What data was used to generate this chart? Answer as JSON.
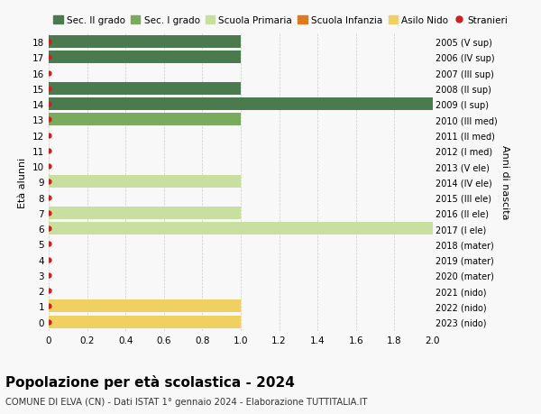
{
  "ages": [
    18,
    17,
    16,
    15,
    14,
    13,
    12,
    11,
    10,
    9,
    8,
    7,
    6,
    5,
    4,
    3,
    2,
    1,
    0
  ],
  "years": [
    "2005 (V sup)",
    "2006 (IV sup)",
    "2007 (III sup)",
    "2008 (II sup)",
    "2009 (I sup)",
    "2010 (III med)",
    "2011 (II med)",
    "2012 (I med)",
    "2013 (V ele)",
    "2014 (IV ele)",
    "2015 (III ele)",
    "2016 (II ele)",
    "2017 (I ele)",
    "2018 (mater)",
    "2019 (mater)",
    "2020 (mater)",
    "2021 (nido)",
    "2022 (nido)",
    "2023 (nido)"
  ],
  "bar_values": [
    1,
    1,
    0,
    1,
    2,
    1,
    0,
    0,
    0,
    1,
    0,
    1,
    2,
    0,
    0,
    0,
    0,
    1,
    1
  ],
  "bar_colors": [
    "#4a7a4e",
    "#4a7a4e",
    "#4a7a4e",
    "#4a7a4e",
    "#4a7a4e",
    "#7aaa5e",
    "#7aaa5e",
    "#7aaa5e",
    "#7aaa5e",
    "#c8dfa0",
    "#c8dfa0",
    "#c8dfa0",
    "#c8dfa0",
    "#e07820",
    "#e07820",
    "#e07820",
    "#f0d060",
    "#f0d060",
    "#f0d060"
  ],
  "stranieri_dots": [
    18,
    17,
    16,
    15,
    14,
    13,
    12,
    11,
    10,
    9,
    8,
    7,
    6,
    5,
    4,
    3,
    2,
    1,
    0
  ],
  "title_bold": "Popolazione per età scolastica - 2024",
  "subtitle": "COMUNE DI ELVA (CN) - Dati ISTAT 1° gennaio 2024 - Elaborazione TUTTITALIA.IT",
  "ylabel_left": "Età alunni",
  "ylabel_right": "Anni di nascita",
  "xlim": [
    0,
    2.0
  ],
  "xticks": [
    0,
    0.2,
    0.4,
    0.6,
    0.8,
    1.0,
    1.2,
    1.4,
    1.6,
    1.8,
    2.0
  ],
  "xtick_labels": [
    "0",
    "0.2",
    "0.4",
    "0.6",
    "0.8",
    "1.0",
    "1.2",
    "1.4",
    "1.6",
    "1.8",
    "2.0"
  ],
  "color_sec2": "#4a7a4e",
  "color_sec1": "#7aaa5e",
  "color_prim": "#c8dfa0",
  "color_infanzia": "#e07820",
  "color_nido": "#f0d060",
  "color_stranieri": "#cc2222",
  "background_color": "#f8f8f8",
  "grid_color": "#cccccc",
  "bar_height": 0.82,
  "legend_labels": [
    "Sec. II grado",
    "Sec. I grado",
    "Scuola Primaria",
    "Scuola Infanzia",
    "Asilo Nido",
    "Stranieri"
  ]
}
